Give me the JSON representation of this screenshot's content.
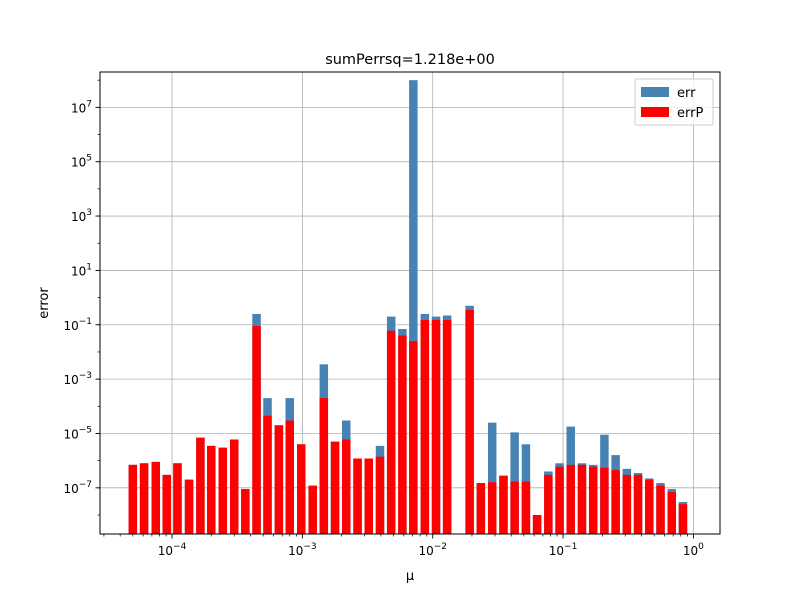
{
  "chart_data": {
    "type": "bar",
    "title": "sumPerrsq=1.218e+00",
    "xlabel": "μ",
    "ylabel": "error",
    "xscale": "log",
    "yscale": "log",
    "xlim": [
      2.8e-05,
      1.6
    ],
    "ylim": [
      2e-09,
      200000000.0
    ],
    "grid": true,
    "legend_position": "top-right",
    "x_ticks": [
      {
        "value": 0.0001,
        "base": "10",
        "exp": "−4"
      },
      {
        "value": 0.001,
        "base": "10",
        "exp": "−3"
      },
      {
        "value": 0.01,
        "base": "10",
        "exp": "−2"
      },
      {
        "value": 0.1,
        "base": "10",
        "exp": "−1"
      },
      {
        "value": 1,
        "base": "10",
        "exp": "0"
      }
    ],
    "y_ticks": [
      {
        "value": 1e-07,
        "base": "10",
        "exp": "−7"
      },
      {
        "value": 1e-05,
        "base": "10",
        "exp": "−5"
      },
      {
        "value": 0.001,
        "base": "10",
        "exp": "−3"
      },
      {
        "value": 0.1,
        "base": "10",
        "exp": "−1"
      },
      {
        "value": 10,
        "base": "10",
        "exp": "1"
      },
      {
        "value": 1000,
        "base": "10",
        "exp": "3"
      },
      {
        "value": 100000,
        "base": "10",
        "exp": "5"
      },
      {
        "value": 10000000,
        "base": "10",
        "exp": "7"
      }
    ],
    "x": [
      5e-05,
      6.1e-05,
      7.5e-05,
      9.1e-05,
      0.00011,
      0.000135,
      0.000165,
      0.0002,
      0.000245,
      0.0003,
      0.000365,
      0.000445,
      0.00054,
      0.00066,
      0.0008,
      0.00098,
      0.0012,
      0.00146,
      0.00178,
      0.00217,
      0.00265,
      0.00323,
      0.00394,
      0.0048,
      0.00585,
      0.0071,
      0.0087,
      0.0106,
      0.0129,
      0.0158,
      0.0192,
      0.0234,
      0.0286,
      0.0349,
      0.0425,
      0.0519,
      0.0632,
      0.0771,
      0.094,
      0.1145,
      0.1397,
      0.1703,
      0.2076,
      0.2531,
      0.3086,
      0.3762,
      0.4587,
      0.5593,
      0.6819,
      0.8314
    ],
    "series": [
      {
        "name": "err",
        "color": "#4682b4",
        "values": [
          7e-07,
          8e-07,
          9e-07,
          3e-07,
          8e-07,
          2e-07,
          7e-06,
          3.5e-06,
          3e-06,
          6e-06,
          9e-08,
          0.25,
          0.0002,
          2e-05,
          0.0002,
          4e-06,
          1.2e-07,
          0.0035,
          5e-06,
          3e-05,
          1.2e-06,
          1.2e-06,
          3.5e-06,
          0.2,
          0.07,
          100000000,
          0.25,
          0.2,
          0.22,
          null,
          0.5,
          1.5e-07,
          2.5e-05,
          2.8e-07,
          1.1e-05,
          4e-06,
          1e-08,
          4e-07,
          8e-07,
          1.8e-05,
          8e-07,
          7e-07,
          9e-06,
          1.6e-06,
          5e-07,
          3.5e-07,
          2.2e-07,
          1.5e-07,
          9e-08,
          3e-08
        ]
      },
      {
        "name": "errP",
        "color": "#ff0000",
        "values": [
          7e-07,
          8e-07,
          9e-07,
          3e-07,
          8e-07,
          2e-07,
          7e-06,
          3.5e-06,
          3e-06,
          6e-06,
          9e-08,
          0.09,
          4.5e-05,
          2e-05,
          3e-05,
          4e-06,
          1.2e-07,
          0.0002,
          5e-06,
          6e-06,
          1.2e-06,
          1.2e-06,
          1.4e-06,
          0.06,
          0.04,
          0.025,
          0.15,
          0.15,
          0.15,
          null,
          0.35,
          1.5e-07,
          1.6e-07,
          2.8e-07,
          1.7e-07,
          1.7e-07,
          1e-08,
          3e-07,
          6e-07,
          7e-07,
          7e-07,
          6e-07,
          5.5e-07,
          4.5e-07,
          3e-07,
          3e-07,
          2e-07,
          1.2e-07,
          7e-08,
          2.5e-08
        ]
      }
    ]
  }
}
